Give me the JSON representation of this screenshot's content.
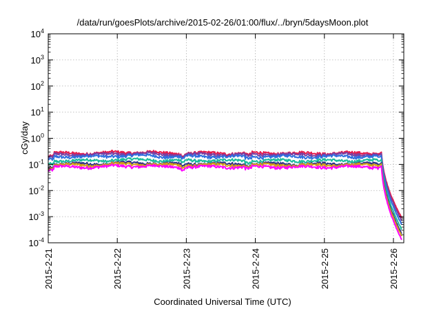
{
  "chart_data": {
    "type": "line",
    "title": "/data/run/goesPlots/archive/2015-02-26/01:00/flux/../bryn/5daysMoon.plot",
    "xlabel": "Coordinated Universal Time (UTC)",
    "ylabel": "cGy/day",
    "x_tick_labels": [
      "2015-2-21",
      "2015-2-22",
      "2015-2-23",
      "2015-2-24",
      "2015-2-25",
      "2015-2-26"
    ],
    "y_ticks": [
      {
        "base": "10",
        "exp": "4"
      },
      {
        "base": "10",
        "exp": "3"
      },
      {
        "base": "10",
        "exp": "2"
      },
      {
        "base": "10",
        "exp": "1"
      },
      {
        "base": "10",
        "exp": "0"
      },
      {
        "base": "10",
        "exp": "-1"
      },
      {
        "base": "10",
        "exp": "-2"
      },
      {
        "base": "10",
        "exp": "-3"
      },
      {
        "base": "10",
        "exp": "-4"
      }
    ],
    "x_range_days": [
      0,
      5.15
    ],
    "y_range_log10": [
      -4,
      4
    ],
    "y_scale": "log",
    "grid": true,
    "legend": "none",
    "series": [
      {
        "color": "#e6194b",
        "base": 0.27,
        "end": 0.0009
      },
      {
        "color": "#7b3fa0",
        "base": 0.24,
        "end": 0.0007
      },
      {
        "color": "#2f6fdf",
        "base": 0.2,
        "end": 0.0005
      },
      {
        "color": "#1abc9c",
        "base": 0.14,
        "end": 0.00032
      },
      {
        "color": "#2e2e8a",
        "base": 0.105,
        "end": 0.00022
      },
      {
        "color": "#d4a017",
        "base": 0.095,
        "end": 0.00018
      },
      {
        "color": "#ff00ff",
        "base": 0.08,
        "end": 0.00013
      }
    ]
  }
}
